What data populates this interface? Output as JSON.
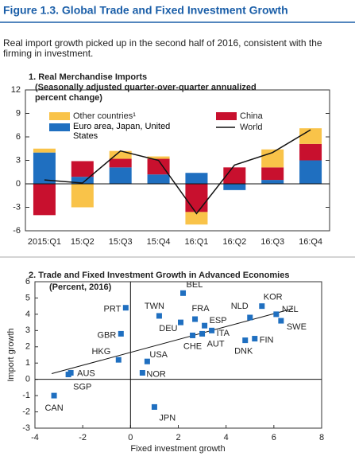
{
  "title": "Figure 1.3.  Global Trade and Fixed Investment Growth",
  "subtitle": "Real import growth picked up in the second half of 2016, consistent with the firming in investment.",
  "chart_data": [
    {
      "type": "bar",
      "stacked": true,
      "title": "1. Real Merchandise Imports",
      "subtitle": "(Seasonally adjusted quarter-over-quarter annualized percent change)",
      "categories": [
        "2015:Q1",
        "15:Q2",
        "15:Q3",
        "15:Q4",
        "16:Q1",
        "16:Q2",
        "16:Q3",
        "16:Q4"
      ],
      "series": [
        {
          "name": "Euro area, Japan, United States",
          "color": "#1f6fc0",
          "values": [
            4.0,
            0.9,
            2.1,
            1.2,
            1.4,
            -0.8,
            0.5,
            3.0
          ]
        },
        {
          "name": "China",
          "color": "#c8102e",
          "values": [
            -4.0,
            2.0,
            1.1,
            2.0,
            -3.6,
            2.1,
            1.6,
            2.1
          ]
        },
        {
          "name": "Other countries¹",
          "color": "#f9c349",
          "values": [
            0.5,
            -3.0,
            1.0,
            0.3,
            -1.6,
            0,
            2.3,
            2.0
          ]
        },
        {
          "name": "World",
          "color": "#111111",
          "type": "line",
          "values": [
            0.5,
            0.1,
            4.2,
            3.0,
            -3.8,
            2.4,
            4.0,
            6.9
          ]
        }
      ],
      "ylim": [
        -6,
        12
      ],
      "yticks": [
        -6,
        -3,
        0,
        3,
        6,
        9,
        12
      ]
    },
    {
      "type": "scatter",
      "title": "2. Trade and Fixed Investment Growth in Advanced Economies",
      "subtitle": "(Percent, 2016)",
      "xlabel": "Fixed investment growth",
      "ylabel": "Import growth",
      "labels": [
        "PRT",
        "BEL",
        "TWN",
        "FRA",
        "ESP",
        "DEU",
        "ITA",
        "AUT",
        "CHE",
        "NLD",
        "KOR",
        "NZL",
        "SWE",
        "DNK",
        "FIN",
        "GBR",
        "HKG",
        "USA",
        "NOR",
        "AUS",
        "SGP",
        "CAN",
        "JPN"
      ],
      "x": [
        -0.2,
        2.2,
        1.2,
        2.7,
        3.1,
        2.1,
        3.4,
        3.0,
        2.6,
        5.0,
        5.5,
        6.1,
        6.3,
        4.8,
        5.2,
        -0.4,
        -0.5,
        0.7,
        0.5,
        -2.5,
        -2.6,
        -3.2,
        1.0
      ],
      "y": [
        4.4,
        5.3,
        3.9,
        3.7,
        3.3,
        3.5,
        3.0,
        2.8,
        2.7,
        3.8,
        4.5,
        4.0,
        3.6,
        2.4,
        2.5,
        2.8,
        1.2,
        1.1,
        0.4,
        0.4,
        0.3,
        -1.0,
        -1.7
      ],
      "color": "#1f6fc0",
      "trendline": {
        "x": [
          -3.3,
          6.8
        ],
        "y": [
          0.35,
          4.35
        ],
        "color": "#111111"
      },
      "xlim": [
        -4,
        8
      ],
      "xticks": [
        -4,
        -2,
        0,
        2,
        4,
        6,
        8
      ],
      "ylim": [
        -3,
        6
      ],
      "yticks": [
        -3,
        -2,
        -1,
        0,
        1,
        2,
        3,
        4,
        5,
        6
      ]
    }
  ]
}
